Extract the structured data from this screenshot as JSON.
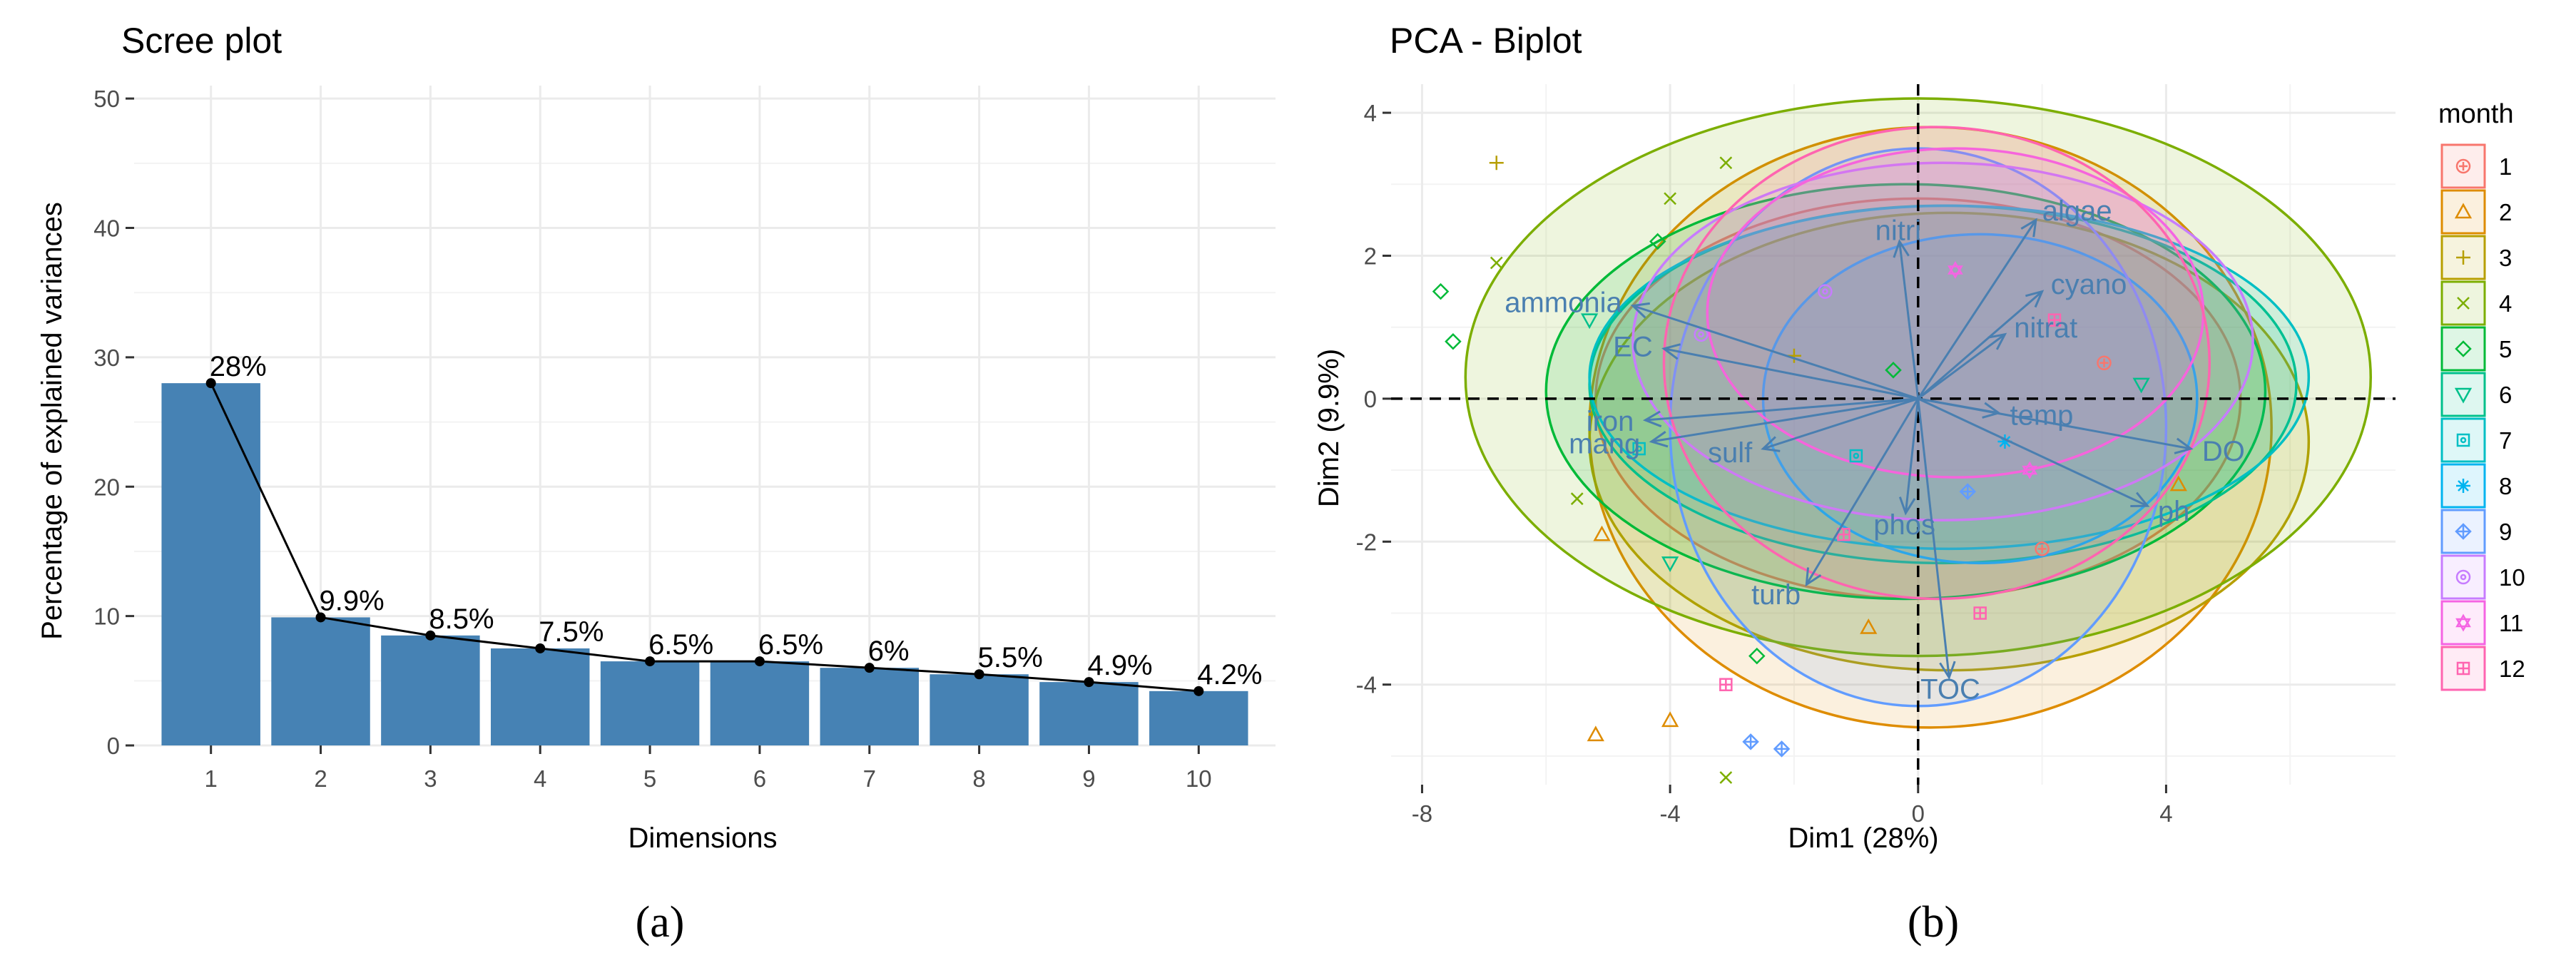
{
  "chart_data": [
    {
      "type": "bar",
      "title": "Scree plot",
      "xlabel": "Dimensions",
      "ylabel": "Percentage of explained variances",
      "categories": [
        "1",
        "2",
        "3",
        "4",
        "5",
        "6",
        "7",
        "8",
        "9",
        "10"
      ],
      "values": [
        28,
        9.9,
        8.5,
        7.5,
        6.5,
        6.5,
        6,
        5.5,
        4.9,
        4.2
      ],
      "value_labels": [
        "28%",
        "9.9%",
        "8.5%",
        "7.5%",
        "6.5%",
        "6.5%",
        "6%",
        "5.5%",
        "4.9%",
        "4.2%"
      ],
      "yticks": [
        0,
        10,
        20,
        30,
        40,
        50
      ],
      "ylim": [
        0,
        51
      ],
      "bar_color": "#4682b4",
      "line_color": "#000000",
      "grid": true,
      "caption": "(a)"
    },
    {
      "type": "scatter",
      "title": "PCA - Biplot",
      "xlabel": "Dim1 (28%)",
      "ylabel": "Dim2 (9.9%)",
      "xticks": [
        -8,
        -4,
        0,
        4
      ],
      "yticks": [
        -4,
        -2,
        0,
        2,
        4
      ],
      "xlim": [
        -8.5,
        7.7
      ],
      "ylim": [
        -5.4,
        4.4
      ],
      "grid": true,
      "legend": {
        "title": "month",
        "position": "right",
        "entries": [
          "1",
          "2",
          "3",
          "4",
          "5",
          "6",
          "7",
          "8",
          "9",
          "10",
          "11",
          "12"
        ],
        "colors": [
          "#f8766d",
          "#de8c00",
          "#b79f00",
          "#7cae00",
          "#00ba38",
          "#00c08b",
          "#00bfc4",
          "#00b4f0",
          "#619cff",
          "#c77cff",
          "#f564e3",
          "#ff64b0"
        ],
        "shapes": [
          "circle-plus",
          "triangle",
          "plus",
          "cross",
          "diamond",
          "triangle-down",
          "square-dot",
          "asterisk",
          "diamond-plus",
          "circle-dot",
          "star",
          "square-grid"
        ]
      },
      "variables": [
        {
          "name": "algae",
          "x": 1.9,
          "y": 2.5
        },
        {
          "name": "nitri",
          "x": -0.3,
          "y": 2.2
        },
        {
          "name": "cyano",
          "x": 2.0,
          "y": 1.5
        },
        {
          "name": "nitrat",
          "x": 1.4,
          "y": 0.9
        },
        {
          "name": "ammonia",
          "x": -4.6,
          "y": 1.3
        },
        {
          "name": "EC",
          "x": -4.1,
          "y": 0.7
        },
        {
          "name": "iron",
          "x": -4.4,
          "y": -0.3
        },
        {
          "name": "mang",
          "x": -4.3,
          "y": -0.6
        },
        {
          "name": "sulf",
          "x": -2.5,
          "y": -0.7
        },
        {
          "name": "temp",
          "x": 1.3,
          "y": -0.2
        },
        {
          "name": "DO",
          "x": 4.4,
          "y": -0.7
        },
        {
          "name": "ph",
          "x": 3.7,
          "y": -1.5
        },
        {
          "name": "phos",
          "x": -0.2,
          "y": -1.6
        },
        {
          "name": "turb",
          "x": -1.8,
          "y": -2.6
        },
        {
          "name": "TOC",
          "x": 0.5,
          "y": -3.9
        }
      ],
      "ellipses": [
        {
          "month": "1",
          "cx": 0.0,
          "cy": 0.0,
          "rx": 5.2,
          "ry": 2.8
        },
        {
          "month": "2",
          "cx": 0.2,
          "cy": -0.4,
          "rx": 5.5,
          "ry": 4.2
        },
        {
          "month": "3",
          "cx": 0.5,
          "cy": -0.6,
          "rx": 5.8,
          "ry": 3.2
        },
        {
          "month": "4",
          "cx": 0.0,
          "cy": 0.3,
          "rx": 7.3,
          "ry": 3.9
        },
        {
          "month": "5",
          "cx": -0.2,
          "cy": 0.1,
          "rx": 5.8,
          "ry": 2.9
        },
        {
          "month": "6",
          "cx": 0.4,
          "cy": 0.2,
          "rx": 5.7,
          "ry": 2.5
        },
        {
          "month": "7",
          "cx": 0.5,
          "cy": 0.3,
          "rx": 5.8,
          "ry": 2.4
        },
        {
          "month": "8",
          "cx": 1.0,
          "cy": 0.0,
          "rx": 3.5,
          "ry": 2.3
        },
        {
          "month": "9",
          "cx": 0.0,
          "cy": -0.4,
          "rx": 4.0,
          "ry": 3.9
        },
        {
          "month": "10",
          "cx": 0.4,
          "cy": 0.8,
          "rx": 5.0,
          "ry": 2.5
        },
        {
          "month": "11",
          "cx": 0.6,
          "cy": 1.2,
          "rx": 4.0,
          "ry": 2.3
        },
        {
          "month": "12",
          "cx": 0.3,
          "cy": 0.5,
          "rx": 4.4,
          "ry": 3.3
        }
      ],
      "points": [
        {
          "month": "3",
          "x": -6.8,
          "y": 3.3
        },
        {
          "month": "4",
          "x": -6.8,
          "y": 1.9
        },
        {
          "month": "4",
          "x": -4.0,
          "y": 2.8
        },
        {
          "month": "4",
          "x": -3.1,
          "y": 3.3
        },
        {
          "month": "5",
          "x": -7.7,
          "y": 1.5
        },
        {
          "month": "5",
          "x": -7.5,
          "y": 0.8
        },
        {
          "month": "5",
          "x": -4.2,
          "y": 2.2
        },
        {
          "month": "6",
          "x": -5.3,
          "y": 1.1
        },
        {
          "month": "2",
          "x": -5.1,
          "y": -1.9
        },
        {
          "month": "2",
          "x": -5.2,
          "y": -4.7
        },
        {
          "month": "2",
          "x": -4.0,
          "y": -4.5
        },
        {
          "month": "4",
          "x": -3.1,
          "y": -5.3
        },
        {
          "month": "12",
          "x": -3.1,
          "y": -4.0
        },
        {
          "month": "9",
          "x": -2.7,
          "y": -4.8
        },
        {
          "month": "9",
          "x": -2.2,
          "y": -4.9
        },
        {
          "month": "5",
          "x": -2.6,
          "y": -3.6
        },
        {
          "month": "4",
          "x": -5.5,
          "y": -1.4
        },
        {
          "month": "7",
          "x": -4.5,
          "y": -0.7
        },
        {
          "month": "6",
          "x": -4.0,
          "y": -2.3
        },
        {
          "month": "2",
          "x": -0.8,
          "y": -3.2
        },
        {
          "month": "12",
          "x": 1.0,
          "y": -3.0
        },
        {
          "month": "1",
          "x": 2.0,
          "y": -2.1
        },
        {
          "month": "10",
          "x": -1.5,
          "y": 1.5
        },
        {
          "month": "11",
          "x": 0.6,
          "y": 1.8
        },
        {
          "month": "12",
          "x": 2.2,
          "y": 1.1
        },
        {
          "month": "1",
          "x": 3.0,
          "y": 0.5
        },
        {
          "month": "3",
          "x": -2.0,
          "y": 0.6
        },
        {
          "month": "8",
          "x": 1.4,
          "y": -0.6
        },
        {
          "month": "7",
          "x": -1.0,
          "y": -0.8
        },
        {
          "month": "9",
          "x": 0.8,
          "y": -1.3
        },
        {
          "month": "6",
          "x": 3.6,
          "y": 0.2
        },
        {
          "month": "10",
          "x": -3.5,
          "y": 0.9
        },
        {
          "month": "11",
          "x": 1.8,
          "y": -1.0
        },
        {
          "month": "12",
          "x": -1.2,
          "y": -1.9
        },
        {
          "month": "2",
          "x": 4.2,
          "y": -1.2
        },
        {
          "month": "5",
          "x": -0.4,
          "y": 0.4
        }
      ],
      "caption": "(b)"
    }
  ]
}
